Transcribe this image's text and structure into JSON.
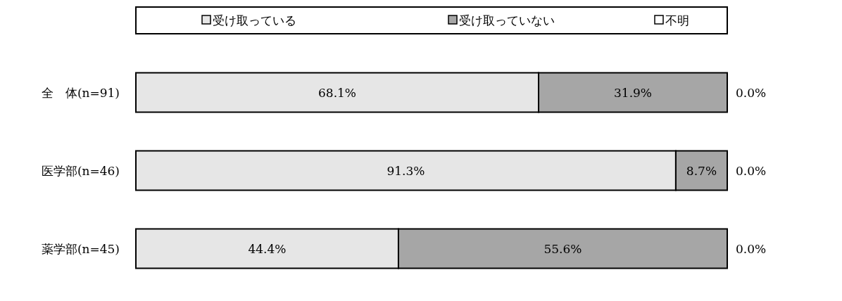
{
  "chart_data": {
    "type": "bar",
    "orientation": "horizontal",
    "stacked": true,
    "legend": "top",
    "categories": [
      "全　体(n=91)",
      "医学部(n=46)",
      "薬学部(n=45)"
    ],
    "series": [
      {
        "name": "受け取っている",
        "color": "#e6e6e6",
        "values": [
          68.1,
          91.3,
          44.4
        ],
        "value_labels": [
          "68.1%",
          "91.3%",
          "44.4%"
        ]
      },
      {
        "name": "受け取っていない",
        "color": "#a6a6a6",
        "values": [
          31.9,
          8.7,
          55.6
        ],
        "value_labels": [
          "31.9%",
          "8.7%",
          "55.6%"
        ]
      },
      {
        "name": "不明",
        "color": "#ffffff",
        "values": [
          0.0,
          0.0,
          0.0
        ],
        "value_labels": [
          "0.0%",
          "0.0%",
          "0.0%"
        ]
      }
    ]
  }
}
